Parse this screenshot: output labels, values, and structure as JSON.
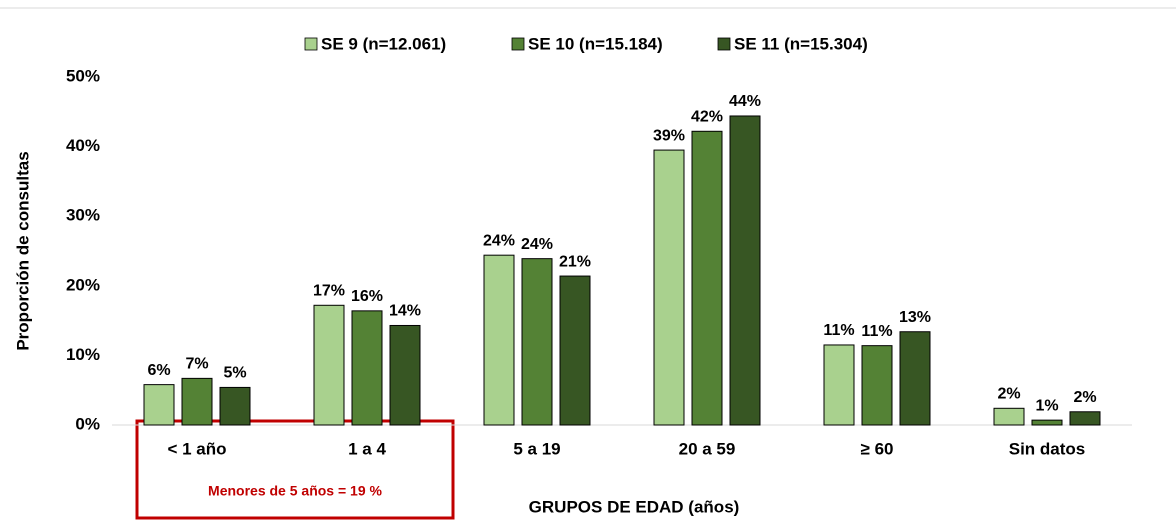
{
  "chart_data": {
    "type": "bar",
    "x_label": "GRUPOS DE EDAD (años)",
    "y_label": "Proporción  de consultas",
    "annotation": "Menores de 5 años = 19 %",
    "categories": [
      "< 1 año",
      "1 a 4",
      "5 a 19",
      "20 a 59",
      "≥ 60",
      "Sin datos"
    ],
    "series": [
      {
        "name": "SE 9 (n=12.061)",
        "color": "#a9d18e",
        "values": [
          5.8,
          17.2,
          24.4,
          39.5,
          11.5,
          2.4
        ],
        "value_labels": [
          "6%",
          "17%",
          "24%",
          "39%",
          "11%",
          "2%"
        ]
      },
      {
        "name": "SE 10 (n=15.184)",
        "color": "#548235",
        "values": [
          6.7,
          16.4,
          23.9,
          42.2,
          11.4,
          0.7
        ],
        "value_labels": [
          "7%",
          "16%",
          "24%",
          "42%",
          "11%",
          "1%"
        ]
      },
      {
        "name": "SE 11 (n=15.304)",
        "color": "#375623",
        "values": [
          5.4,
          14.3,
          21.4,
          44.4,
          13.4,
          1.9
        ],
        "value_labels": [
          "5%",
          "14%",
          "21%",
          "44%",
          "13%",
          "2%"
        ]
      }
    ],
    "ylim": [
      0,
      50
    ],
    "yticks": [
      {
        "value": 0,
        "label": "0%"
      },
      {
        "value": 10,
        "label": "10%"
      },
      {
        "value": 20,
        "label": "20%"
      },
      {
        "value": 30,
        "label": "30%"
      },
      {
        "value": 40,
        "label": "40%"
      },
      {
        "value": 50,
        "label": "50%"
      }
    ],
    "grid": false,
    "legend": "top"
  }
}
